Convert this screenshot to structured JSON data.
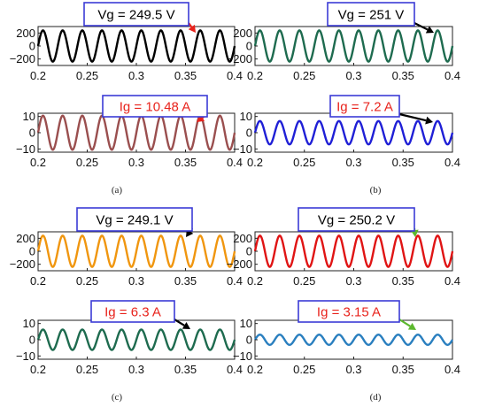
{
  "chart_data": [
    {
      "type": "line",
      "caption": "(a)",
      "panels": [
        {
          "quantity": "voltage",
          "annotation": "Vg = 249.5 V",
          "annotation_color": "#000000",
          "box_color": "#3b3bd6",
          "arrow_color": "#e8231c",
          "series_color": "#000000",
          "amplitude": 240,
          "cycles": 10,
          "xlim": [
            0.2,
            0.4
          ],
          "ylim": [
            -300,
            300
          ],
          "x_ticks": [
            "0.2",
            "0.25",
            "0.3",
            "0.35",
            "0.4"
          ],
          "y_ticks": [
            "200",
            "0",
            "−200"
          ],
          "y_tick_values": [
            200,
            0,
            -200
          ]
        },
        {
          "quantity": "current",
          "annotation": "Ig = 10.48 A",
          "annotation_color": "#e8231c",
          "box_color": "#3b3bd6",
          "arrow_color": "#e8231c",
          "series_color": "#9a4f4f",
          "amplitude": 10.48,
          "cycles": 10,
          "xlim": [
            0.2,
            0.4
          ],
          "ylim": [
            -12,
            12
          ],
          "x_ticks": [
            "0.2",
            "0.25",
            "0.3",
            "0.35",
            "0.4"
          ],
          "y_ticks": [
            "10",
            "0",
            "−10"
          ],
          "y_tick_values": [
            10,
            0,
            -10
          ]
        }
      ]
    },
    {
      "type": "line",
      "caption": "(b)",
      "panels": [
        {
          "quantity": "voltage",
          "annotation": "Vg = 251 V",
          "annotation_color": "#000000",
          "box_color": "#3b3bd6",
          "arrow_color": "#000000",
          "series_color": "#1e6b4f",
          "amplitude": 240,
          "cycles": 10,
          "xlim": [
            0.2,
            0.4
          ],
          "ylim": [
            -300,
            300
          ],
          "x_ticks": [
            "0.2",
            "0.25",
            "0.3",
            "0.35",
            "0.4"
          ],
          "y_ticks": [
            "200",
            "0",
            "−200"
          ],
          "y_tick_values": [
            200,
            0,
            -200
          ]
        },
        {
          "quantity": "current",
          "annotation": "Ig = 7.2 A",
          "annotation_color": "#e8231c",
          "box_color": "#3b3bd6",
          "arrow_color": "#000000",
          "series_color": "#1f1fd6",
          "amplitude": 7.2,
          "cycles": 10,
          "xlim": [
            0.2,
            0.4
          ],
          "ylim": [
            -12,
            12
          ],
          "x_ticks": [
            "0.2",
            "0.25",
            "0.3",
            "0.35",
            "0.4"
          ],
          "y_ticks": [
            "10",
            "0",
            "−10"
          ],
          "y_tick_values": [
            10,
            0,
            -10
          ]
        }
      ]
    },
    {
      "type": "line",
      "caption": "(c)",
      "panels": [
        {
          "quantity": "voltage",
          "annotation": "Vg = 249.1 V",
          "annotation_color": "#000000",
          "box_color": "#3b3bd6",
          "arrow_color": "#000000",
          "series_color": "#f0960f",
          "amplitude": 240,
          "cycles": 10,
          "xlim": [
            0.2,
            0.4
          ],
          "ylim": [
            -300,
            300
          ],
          "x_ticks": [
            "0.2",
            "0.25",
            "0.3",
            "0.35",
            "0.4"
          ],
          "y_ticks": [
            "200",
            "0",
            "−200"
          ],
          "y_tick_values": [
            200,
            0,
            -200
          ]
        },
        {
          "quantity": "current",
          "annotation": "Ig = 6.3 A",
          "annotation_color": "#e8231c",
          "box_color": "#3b3bd6",
          "arrow_color": "#000000",
          "series_color": "#1e6b4f",
          "amplitude": 6.3,
          "cycles": 10,
          "xlim": [
            0.2,
            0.4
          ],
          "ylim": [
            -12,
            12
          ],
          "x_ticks": [
            "0.2",
            "0.25",
            "0.3",
            "0.35",
            "0.4"
          ],
          "y_ticks": [
            "10",
            "0",
            "−10"
          ],
          "y_tick_values": [
            10,
            0,
            -10
          ]
        }
      ]
    },
    {
      "type": "line",
      "caption": "(d)",
      "panels": [
        {
          "quantity": "voltage",
          "annotation": "Vg = 250.2 V",
          "annotation_color": "#000000",
          "box_color": "#3b3bd6",
          "arrow_color": "#5cb82e",
          "series_color": "#e01414",
          "amplitude": 240,
          "cycles": 10,
          "xlim": [
            0.2,
            0.4
          ],
          "ylim": [
            -300,
            300
          ],
          "x_ticks": [
            "0.2",
            "0.25",
            "0.3",
            "0.35",
            "0.4"
          ],
          "y_ticks": [
            "200",
            "0",
            "−200"
          ],
          "y_tick_values": [
            200,
            0,
            -200
          ]
        },
        {
          "quantity": "current",
          "annotation": "Ig = 3.15 A",
          "annotation_color": "#e8231c",
          "box_color": "#3b3bd6",
          "arrow_color": "#5cb82e",
          "series_color": "#2a7fbf",
          "amplitude": 3.15,
          "cycles": 10,
          "xlim": [
            0.2,
            0.4
          ],
          "ylim": [
            -12,
            12
          ],
          "x_ticks": [
            "0.2",
            "0.25",
            "0.3",
            "0.35",
            "0.4"
          ],
          "y_ticks": [
            "10",
            "0",
            "−10"
          ],
          "y_tick_values": [
            10,
            0,
            -10
          ]
        }
      ]
    }
  ]
}
